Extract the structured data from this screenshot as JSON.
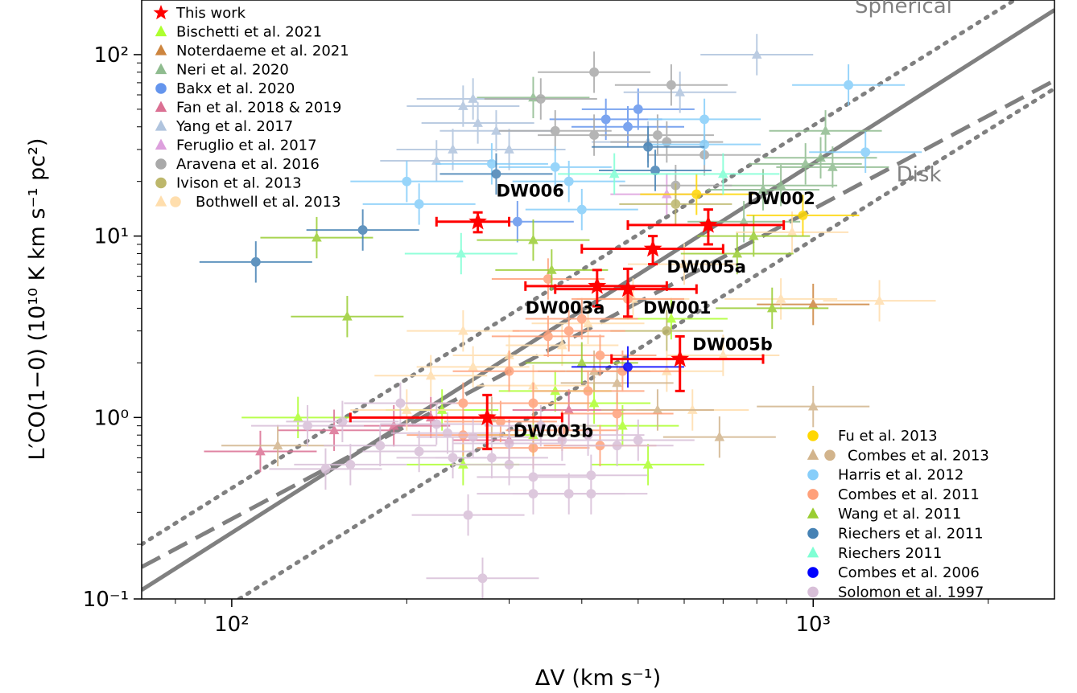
{
  "chart_data": {
    "type": "scatter",
    "xscale": "log",
    "yscale": "log",
    "xlim": [
      70,
      2600
    ],
    "ylim": [
      0.1,
      200
    ],
    "xlabel": "ΔV (km s⁻¹)",
    "ylabel": "L′CO(1−0) (10¹⁰ K km s⁻¹ pc²)",
    "x_ticks": [
      {
        "value": 100,
        "label": "10²"
      },
      {
        "value": 1000,
        "label": "10³"
      }
    ],
    "y_ticks": [
      {
        "value": 0.1,
        "label": "10⁻¹"
      },
      {
        "value": 1,
        "label": "10⁰"
      },
      {
        "value": 10,
        "label": "10¹"
      },
      {
        "value": 100,
        "label": "10²"
      }
    ],
    "grid": false,
    "annotations": [
      {
        "text": "Spherical",
        "x": 1430,
        "y": 170,
        "color": "#808080"
      },
      {
        "text": "Disk",
        "x": 1520,
        "y": 20,
        "color": "#808080"
      }
    ],
    "this_work": {
      "name": "This work",
      "color": "#ff0000",
      "marker": "star",
      "points": [
        {
          "label": "DW006",
          "x": 265,
          "y": 12.0,
          "xerr": [
            40,
            35
          ],
          "yerr": [
            1.5,
            1.5
          ],
          "label_x": 285,
          "label_y": 16.5
        },
        {
          "label": "DW002",
          "x": 660,
          "y": 11.5,
          "xerr": [
            180,
            230
          ],
          "yerr": [
            2.5,
            2.5
          ],
          "label_x": 770,
          "label_y": 15.0
        },
        {
          "label": "DW005a",
          "x": 530,
          "y": 8.5,
          "xerr": [
            130,
            170
          ],
          "yerr": [
            1.5,
            1.5
          ],
          "label_x": 560,
          "label_y": 6.3
        },
        {
          "label": "DW003a",
          "x": 425,
          "y": 5.3,
          "xerr": [
            105,
            135
          ],
          "yerr": [
            1.2,
            1.2
          ],
          "label_x": 320,
          "label_y": 3.75
        },
        {
          "label": "DW001",
          "x": 480,
          "y": 5.1,
          "xerr": [
            120,
            150
          ],
          "yerr": [
            1.5,
            1.5
          ],
          "label_x": 510,
          "label_y": 3.75
        },
        {
          "label": "DW005b",
          "x": 590,
          "y": 2.1,
          "xerr": [
            140,
            230
          ],
          "yerr": [
            0.7,
            0.7
          ],
          "label_x": 620,
          "label_y": 2.35
        },
        {
          "label": "DW003b",
          "x": 275,
          "y": 1.0,
          "xerr": [
            115,
            95
          ],
          "yerr": [
            0.33,
            0.33
          ],
          "label_x": 305,
          "label_y": 0.78
        }
      ]
    },
    "series": [
      {
        "name": "Bischetti et al. 2021",
        "color": "#adff2f",
        "marker": "triangle",
        "points": [
          [
            130,
            1.0
          ],
          [
            250,
            0.55
          ],
          [
            520,
            0.55
          ],
          [
            330,
            0.8
          ],
          [
            420,
            1.2
          ],
          [
            360,
            1.4
          ],
          [
            570,
            3.5
          ],
          [
            230,
            1.1
          ],
          [
            470,
            0.9
          ]
        ]
      },
      {
        "name": "Noterdaeme et al. 2021",
        "color": "#cd853f",
        "marker": "triangle",
        "points": [
          [
            1000,
            4.2
          ]
        ]
      },
      {
        "name": "Neri et al. 2020",
        "color": "#8fbc8f",
        "marker": "triangle",
        "points": [
          [
            330,
            58
          ],
          [
            970,
            25
          ],
          [
            1030,
            27
          ],
          [
            1080,
            24
          ],
          [
            1050,
            38
          ],
          [
            820,
            18
          ],
          [
            760,
            12
          ],
          [
            880,
            19
          ]
        ]
      },
      {
        "name": "Bakx et al. 2020",
        "color": "#6495ed",
        "marker": "circle",
        "points": [
          [
            500,
            50
          ],
          [
            310,
            12
          ],
          [
            480,
            40
          ],
          [
            440,
            44
          ]
        ]
      },
      {
        "name": "Fan et al. 2018 & 2019",
        "color": "#db7093",
        "marker": "triangle",
        "points": [
          [
            112,
            0.65
          ],
          [
            150,
            0.85
          ],
          [
            190,
            0.9
          ],
          [
            220,
            1.0
          ],
          [
            300,
            0.75
          ],
          [
            380,
            1.1
          ]
        ]
      },
      {
        "name": "Yang et al. 2017",
        "color": "#b0c4de",
        "marker": "triangle",
        "points": [
          [
            800,
            100
          ],
          [
            260,
            57
          ],
          [
            250,
            52
          ],
          [
            265,
            42
          ],
          [
            285,
            38
          ],
          [
            240,
            30
          ],
          [
            300,
            30
          ],
          [
            225,
            26
          ],
          [
            590,
            62
          ],
          [
            520,
            33
          ]
        ]
      },
      {
        "name": "Feruglio et al. 2017",
        "color": "#dda0dd",
        "marker": "triangle",
        "points": [
          [
            560,
            17
          ]
        ]
      },
      {
        "name": "Aravena et al. 2016",
        "color": "#a9a9a9",
        "marker": "circle",
        "points": [
          [
            420,
            80
          ],
          [
            340,
            57
          ],
          [
            570,
            68
          ],
          [
            360,
            38
          ],
          [
            420,
            36
          ],
          [
            540,
            36
          ],
          [
            560,
            33
          ],
          [
            580,
            19
          ],
          [
            650,
            28
          ]
        ]
      },
      {
        "name": "Ivison et al. 2013",
        "color": "#bdb76b",
        "marker": "circle",
        "points": [
          [
            580,
            15
          ],
          [
            560,
            3.0
          ]
        ]
      },
      {
        "name": "Bothwell et al. 2013",
        "color": "#ffdead",
        "marker": "triangle",
        "points": [
          [
            1300,
            4.4
          ],
          [
            920,
            10.5
          ],
          [
            880,
            4.5
          ],
          [
            600,
            7.0
          ],
          [
            490,
            4.5
          ],
          [
            410,
            3.3
          ],
          [
            370,
            2.5
          ],
          [
            300,
            2.2
          ],
          [
            260,
            1.9
          ],
          [
            330,
            1.5
          ],
          [
            560,
            1.8
          ],
          [
            620,
            1.1
          ],
          [
            220,
            1.7
          ],
          [
            200,
            1.1
          ],
          [
            700,
            2.2
          ],
          [
            250,
            3.0
          ]
        ]
      },
      {
        "name": "Fu et al. 2013",
        "color": "#ffd700",
        "marker": "circle",
        "points": [
          [
            630,
            17
          ],
          [
            960,
            13
          ]
        ]
      },
      {
        "name": "Combes et al. 2013",
        "color": "#d2b48c",
        "marker": "triangle",
        "points": [
          [
            690,
            0.78
          ],
          [
            540,
            1.1
          ],
          [
            420,
            1.8
          ],
          [
            1000,
            1.15
          ],
          [
            120,
            0.7
          ],
          [
            460,
            1.55
          ],
          [
            280,
            1.0
          ]
        ]
      },
      {
        "name": "Harris et al. 2012",
        "color": "#87cefa",
        "marker": "circle",
        "points": [
          [
            1150,
            68
          ],
          [
            1230,
            29
          ],
          [
            650,
            44
          ],
          [
            650,
            32
          ],
          [
            200,
            20
          ],
          [
            360,
            24
          ],
          [
            280,
            25
          ],
          [
            380,
            20
          ],
          [
            210,
            15
          ],
          [
            400,
            14
          ]
        ]
      },
      {
        "name": "Combes et al. 2011",
        "color": "#ffa07a",
        "marker": "circle",
        "points": [
          [
            400,
            3.5
          ],
          [
            380,
            3.0
          ],
          [
            430,
            2.2
          ],
          [
            350,
            2.8
          ],
          [
            470,
            1.8
          ],
          [
            410,
            1.4
          ],
          [
            330,
            1.2
          ],
          [
            290,
            0.95
          ],
          [
            250,
            0.8
          ],
          [
            330,
            0.68
          ],
          [
            430,
            0.7
          ],
          [
            370,
            0.85
          ],
          [
            460,
            1.05
          ],
          [
            300,
            1.8
          ],
          [
            250,
            1.2
          ],
          [
            480,
            4.5
          ],
          [
            350,
            5.8
          ]
        ]
      },
      {
        "name": "Wang et al. 2011",
        "color": "#9acd32",
        "marker": "triangle",
        "points": [
          [
            158,
            3.6
          ],
          [
            140,
            9.8
          ],
          [
            330,
            9.5
          ],
          [
            355,
            6.5
          ],
          [
            790,
            10.0
          ],
          [
            850,
            4.0
          ],
          [
            740,
            8.0
          ],
          [
            400,
            2.0
          ]
        ]
      },
      {
        "name": "Riechers et al. 2011",
        "color": "#4682b4",
        "marker": "circle",
        "points": [
          [
            110,
            7.2
          ],
          [
            168,
            10.8
          ],
          [
            285,
            22
          ],
          [
            535,
            23
          ],
          [
            520,
            31
          ]
        ]
      },
      {
        "name": "Riechers 2011",
        "color": "#7fffd4",
        "marker": "triangle",
        "points": [
          [
            248,
            8.0
          ],
          [
            700,
            22
          ],
          [
            455,
            22
          ]
        ]
      },
      {
        "name": "Combes et al. 2006",
        "color": "#0000ff",
        "marker": "circle",
        "points": [
          [
            480,
            1.9
          ]
        ]
      },
      {
        "name": "Solomon et al. 1997",
        "color": "#d8bfd8",
        "marker": "circle",
        "points": [
          [
            255,
            0.29
          ],
          [
            270,
            0.13
          ],
          [
            330,
            0.47
          ],
          [
            330,
            0.38
          ],
          [
            380,
            0.38
          ],
          [
            415,
            0.48
          ],
          [
            415,
            0.38
          ],
          [
            300,
            0.55
          ],
          [
            240,
            0.6
          ],
          [
            210,
            0.65
          ],
          [
            180,
            0.7
          ],
          [
            160,
            0.55
          ],
          [
            145,
            0.52
          ],
          [
            135,
            0.9
          ],
          [
            155,
            0.95
          ],
          [
            195,
            1.2
          ],
          [
            225,
            0.92
          ],
          [
            260,
            0.78
          ],
          [
            300,
            0.72
          ],
          [
            340,
            0.9
          ],
          [
            370,
            0.75
          ],
          [
            410,
            0.8
          ],
          [
            460,
            0.7
          ],
          [
            500,
            0.75
          ],
          [
            280,
            0.6
          ],
          [
            235,
            0.82
          ]
        ]
      }
    ],
    "reference_lines": [
      {
        "name": "spherical-fit",
        "style": "solid",
        "color": "#808080",
        "points": [
          [
            70,
            0.112
          ],
          [
            2600,
            176
          ]
        ]
      },
      {
        "name": "disk-fit",
        "style": "dashed",
        "color": "#808080",
        "points": [
          [
            70,
            0.15
          ],
          [
            2600,
            72
          ]
        ]
      },
      {
        "name": "upper-envelope",
        "style": "dotted",
        "color": "#808080",
        "points": [
          [
            70,
            0.2
          ],
          [
            2220,
            200
          ]
        ]
      },
      {
        "name": "lower-envelope",
        "style": "dotted",
        "color": "#808080",
        "points": [
          [
            103,
            0.1
          ],
          [
            2600,
            65
          ]
        ]
      }
    ],
    "legend": {
      "top_left": [
        "This work",
        "Bischetti et al. 2021",
        "Noterdaeme et al. 2021",
        "Neri et al. 2020",
        "Bakx et al. 2020",
        "Fan et al. 2018 & 2019",
        "Yang et al. 2017",
        "Feruglio et al. 2017",
        "Aravena et al. 2016",
        "Ivison et al. 2013",
        "Bothwell et al. 2013"
      ],
      "bottom_right": [
        "Fu et al. 2013",
        "Combes et al. 2013",
        "Harris et al. 2012",
        "Combes et al. 2011",
        "Wang et al. 2011",
        "Riechers et al. 2011",
        "Riechers 2011",
        "Combes et al. 2006",
        "Solomon et al. 1997"
      ]
    }
  }
}
